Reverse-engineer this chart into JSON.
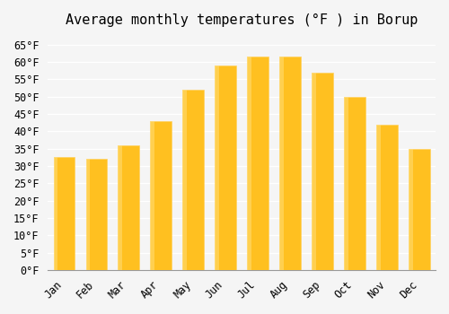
{
  "months": [
    "Jan",
    "Feb",
    "Mar",
    "Apr",
    "May",
    "Jun",
    "Jul",
    "Aug",
    "Sep",
    "Oct",
    "Nov",
    "Dec"
  ],
  "values": [
    32.5,
    32.0,
    36.0,
    43.0,
    52.0,
    59.0,
    61.5,
    61.5,
    57.0,
    50.0,
    42.0,
    35.0
  ],
  "bar_color_face": "#FFC020",
  "bar_color_edge": "#FFD060",
  "title": "Average monthly temperatures (°F ) in Borup",
  "ylim": [
    0,
    68
  ],
  "yticks": [
    0,
    5,
    10,
    15,
    20,
    25,
    30,
    35,
    40,
    45,
    50,
    55,
    60,
    65
  ],
  "ytick_labels": [
    "0°F",
    "5°F",
    "10°F",
    "15°F",
    "20°F",
    "25°F",
    "30°F",
    "35°F",
    "40°F",
    "45°F",
    "50°F",
    "55°F",
    "60°F",
    "65°F"
  ],
  "background_color": "#F5F5F5",
  "grid_color": "#FFFFFF",
  "title_fontsize": 11,
  "tick_fontsize": 8.5,
  "font_family": "monospace"
}
